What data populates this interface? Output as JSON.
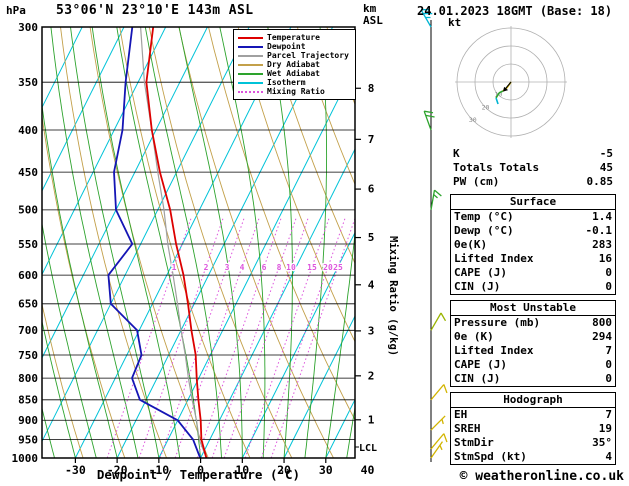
{
  "header": {
    "pressure_unit": "hPa",
    "station": "53°06'N 23°10'E 143m ASL",
    "altitude_unit_line1": "km",
    "altitude_unit_line2": "ASL",
    "datetime": "24.01.2023 18GMT (Base: 18)"
  },
  "axes": {
    "pressure_ticks": [
      300,
      350,
      400,
      450,
      500,
      550,
      600,
      650,
      700,
      750,
      800,
      850,
      900,
      950,
      1000
    ],
    "temp_ticks": [
      -30,
      -20,
      -10,
      0,
      10,
      20,
      30,
      40
    ],
    "temp_axis_label": "Dewpoint / Temperature (°C)",
    "km_ticks": [
      8,
      7,
      6,
      5,
      4,
      3,
      2,
      1
    ],
    "lcl_label": "LCL",
    "mixing_ratio_axis_label": "Mixing Ratio (g/kg)",
    "mixing_ratio_values": [
      1,
      2,
      3,
      4,
      6,
      8,
      10,
      15,
      20,
      25
    ]
  },
  "legend": [
    {
      "label": "Temperature",
      "color": "#dd0000",
      "style": "solid"
    },
    {
      "label": "Dewpoint",
      "color": "#1515b5",
      "style": "solid"
    },
    {
      "label": "Parcel Trajectory",
      "color": "#a0a0a0",
      "style": "solid"
    },
    {
      "label": "Dry Adiabat",
      "color": "#c3a04a",
      "style": "solid"
    },
    {
      "label": "Wet Adiabat",
      "color": "#2da32d",
      "style": "solid"
    },
    {
      "label": "Isotherm",
      "color": "#00c3d8",
      "style": "solid"
    },
    {
      "label": "Mixing Ratio",
      "color": "#dd55dd",
      "style": "dotted"
    }
  ],
  "chart_data": {
    "type": "line",
    "chart_kind": "skew-t-log-p sounding",
    "pressure_axis_hpa": [
      300,
      1000
    ],
    "temp_axis_c": [
      -38,
      40
    ],
    "grid": {
      "isotherm_step_c": 10,
      "dry_adiabat_step_k": 10,
      "wet_adiabat_step_c": 5
    },
    "colors": {
      "temperature": "#dd0000",
      "dewpoint": "#1515b5",
      "parcel": "#a0a0a0",
      "dry_adiabat": "#c3a04a",
      "wet_adiabat": "#2da32d",
      "isotherm": "#00c3d8",
      "mixing_ratio": "#dd55dd"
    },
    "series": [
      {
        "id": "parcel-trajectory",
        "name": "Parcel Trajectory",
        "color": "#a0a0a0",
        "width": 1.2,
        "points": [
          [
            1000,
            1.4
          ],
          [
            950,
            -2.5
          ],
          [
            900,
            -5.5
          ],
          [
            850,
            -9
          ],
          [
            800,
            -12.5
          ],
          [
            750,
            -16
          ],
          [
            700,
            -20
          ],
          [
            650,
            -24
          ],
          [
            600,
            -28.5
          ],
          [
            550,
            -33.5
          ],
          [
            500,
            -38.5
          ],
          [
            450,
            -44.5
          ],
          [
            400,
            -51
          ],
          [
            350,
            -58.5
          ],
          [
            300,
            -66
          ]
        ]
      },
      {
        "id": "dewpoint",
        "name": "Dewpoint",
        "color": "#1515b5",
        "width": 1.8,
        "points": [
          [
            1000,
            -0.1
          ],
          [
            950,
            -4
          ],
          [
            900,
            -10
          ],
          [
            850,
            -21.5
          ],
          [
            800,
            -26
          ],
          [
            750,
            -26.5
          ],
          [
            700,
            -30.5
          ],
          [
            650,
            -40
          ],
          [
            600,
            -44
          ],
          [
            550,
            -42
          ],
          [
            500,
            -50
          ],
          [
            450,
            -55
          ],
          [
            400,
            -58
          ],
          [
            350,
            -63
          ],
          [
            300,
            -68
          ]
        ]
      },
      {
        "id": "temperature",
        "name": "Temperature",
        "color": "#dd0000",
        "width": 1.8,
        "points": [
          [
            1000,
            1.4
          ],
          [
            950,
            -2
          ],
          [
            900,
            -4.5
          ],
          [
            850,
            -7.5
          ],
          [
            800,
            -10.5
          ],
          [
            750,
            -13.5
          ],
          [
            700,
            -17.5
          ],
          [
            650,
            -21.5
          ],
          [
            600,
            -26
          ],
          [
            550,
            -31.5
          ],
          [
            500,
            -37
          ],
          [
            450,
            -44
          ],
          [
            400,
            -51
          ],
          [
            350,
            -58
          ],
          [
            300,
            -63
          ]
        ]
      }
    ],
    "wind_barbs": [
      {
        "pressure_hpa": 300,
        "speed_kt": 25,
        "from_deg": 330,
        "color": "#00b4d2"
      },
      {
        "pressure_hpa": 400,
        "speed_kt": 20,
        "from_deg": 340,
        "color": "#2da32d"
      },
      {
        "pressure_hpa": 500,
        "speed_kt": 15,
        "from_deg": 10,
        "color": "#2da32d"
      },
      {
        "pressure_hpa": 700,
        "speed_kt": 10,
        "from_deg": 30,
        "color": "#9ab400"
      },
      {
        "pressure_hpa": 850,
        "speed_kt": 10,
        "from_deg": 40,
        "color": "#d2b400"
      },
      {
        "pressure_hpa": 925,
        "speed_kt": 5,
        "from_deg": 45,
        "color": "#d2b400"
      },
      {
        "pressure_hpa": 975,
        "speed_kt": 10,
        "from_deg": 40,
        "color": "#d2b400"
      },
      {
        "pressure_hpa": 1000,
        "speed_kt": 5,
        "from_deg": 35,
        "color": "#d2b400"
      }
    ]
  },
  "hodograph": {
    "unit_label": "kt",
    "ring_labels_kt": [
      10,
      20,
      30
    ],
    "trace_uv_kt": [
      [
        0,
        0
      ],
      [
        -2.3,
        -3.3
      ],
      [
        -4.5,
        -5
      ],
      [
        -6.7,
        -6.1
      ],
      [
        -8.3,
        -8.9
      ],
      [
        -7.2,
        -12.2
      ]
    ],
    "segment_colors": [
      "#d2b400",
      "#d2b400",
      "#2da32d",
      "#2da32d",
      "#00b4d2"
    ],
    "storm_motion_from_deg": "35°",
    "storm_motion_kt": "4"
  },
  "indices": {
    "top": [
      [
        "K",
        "-5"
      ],
      [
        "Totals Totals",
        "45"
      ],
      [
        "PW (cm)",
        "0.85"
      ]
    ],
    "sections": [
      {
        "title": "Surface",
        "rows": [
          [
            "Temp (°C)",
            "1.4"
          ],
          [
            "Dewp (°C)",
            "-0.1"
          ],
          [
            "θe(K)",
            "283"
          ],
          [
            "Lifted Index",
            "16"
          ],
          [
            "CAPE (J)",
            "0"
          ],
          [
            "CIN (J)",
            "0"
          ]
        ]
      },
      {
        "title": "Most Unstable",
        "rows": [
          [
            "Pressure (mb)",
            "800"
          ],
          [
            "θe (K)",
            "294"
          ],
          [
            "Lifted Index",
            "7"
          ],
          [
            "CAPE (J)",
            "0"
          ],
          [
            "CIN (J)",
            "0"
          ]
        ]
      },
      {
        "title": "Hodograph",
        "rows": [
          [
            "EH",
            "7"
          ],
          [
            "SREH",
            "19"
          ],
          [
            "StmDir",
            "35°"
          ],
          [
            "StmSpd (kt)",
            "4"
          ]
        ]
      }
    ]
  },
  "footer": {
    "copyright": "© weatheronline.co.uk"
  }
}
